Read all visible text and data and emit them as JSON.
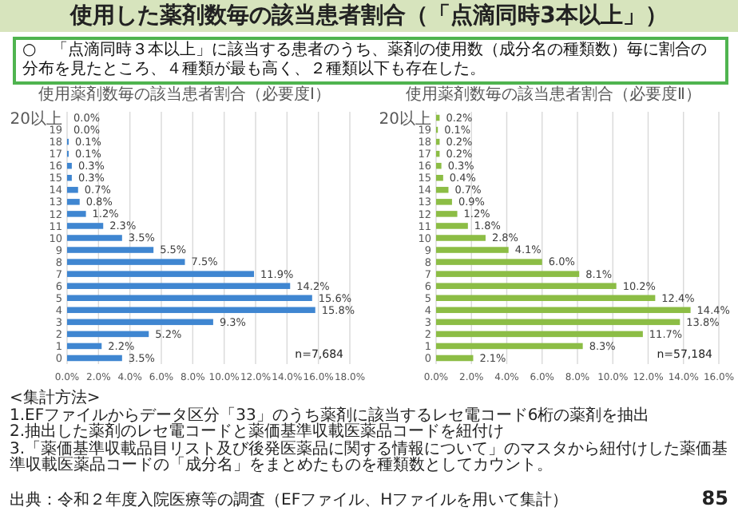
{
  "chart_data": [
    {
      "type": "other",
      "title": "使用した薬剤数毎の該当患者割合（「点滴同時3本以上」）",
      "subtitle": "○　「点滴同時３本以上」に該当する患者のうち、薬剤の使用数（成分名の種類数）毎に割合の分布を見たところ、４種類が最も高く、２種類以下も存在した。",
      "annotations": [
        "<集計方法>",
        "1.EFファイルからデータ区分「33」のうち薬剤に該当するレセ電コード6桁の薬剤を抽出",
        "2.抽出した薬剤のレセ電コードと薬価基準収載医薬品コードを紐付け",
        "3.「薬価基準収載品目リスト及び後発医薬品に関する情報について」のマスタから紐付けした薬価基準収載医薬品コードの「成分名」をまとめたものを種類数としてカウント。",
        "出典：令和２年度入院医療等の調査（EFファイル、Hファイルを用いて集計）",
        "85"
      ]
    },
    {
      "type": "bar",
      "orientation": "horizontal",
      "title": "使用薬剤数毎の該当患者割合（必要度Ⅰ）",
      "color": "#3f86d1",
      "grid": "x",
      "categories": [
        "20以上",
        "19",
        "18",
        "17",
        "16",
        "15",
        "14",
        "13",
        "12",
        "11",
        "10",
        "9",
        "8",
        "7",
        "6",
        "5",
        "4",
        "3",
        "2",
        "1",
        "0"
      ],
      "values": [
        0.0,
        0.0,
        0.1,
        0.1,
        0.3,
        0.3,
        0.7,
        0.8,
        1.2,
        2.3,
        3.5,
        5.5,
        7.5,
        11.9,
        14.2,
        15.6,
        15.8,
        9.3,
        5.2,
        2.2,
        3.5
      ],
      "value_labels": [
        "0.0%",
        "0.0%",
        "0.1%",
        "0.1%",
        "0.3%",
        "0.3%",
        "0.7%",
        "0.8%",
        "1.2%",
        "2.3%",
        "3.5%",
        "5.5%",
        "7.5%",
        "11.9%",
        "14.2%",
        "15.6%",
        "15.8%",
        "9.3%",
        "5.2%",
        "2.2%",
        "3.5%"
      ],
      "xlim": [
        0,
        18
      ],
      "xticks": [
        {
          "value": 0,
          "label": "0.0%"
        },
        {
          "value": 2,
          "label": "2.0%"
        },
        {
          "value": 4,
          "label": "4.0%"
        },
        {
          "value": 6,
          "label": "6.0%"
        },
        {
          "value": 8,
          "label": "8.0%"
        },
        {
          "value": 10,
          "label": "10.0%"
        },
        {
          "value": 12,
          "label": "12.0%"
        },
        {
          "value": 14,
          "label": "14.0%"
        },
        {
          "value": 16,
          "label": "16.0%"
        },
        {
          "value": 18,
          "label": "18.0%"
        }
      ],
      "annotations": [
        "n=7,684"
      ]
    },
    {
      "type": "bar",
      "orientation": "horizontal",
      "title": "使用薬剤数毎の該当患者割合（必要度Ⅱ）",
      "color": "#8cbd45",
      "grid": "x",
      "categories": [
        "20以上",
        "19",
        "18",
        "17",
        "16",
        "15",
        "14",
        "13",
        "12",
        "11",
        "10",
        "9",
        "8",
        "7",
        "6",
        "5",
        "4",
        "3",
        "2",
        "1",
        "0"
      ],
      "values": [
        0.2,
        0.1,
        0.2,
        0.2,
        0.3,
        0.4,
        0.7,
        0.9,
        1.2,
        1.8,
        2.8,
        4.1,
        6.0,
        8.1,
        10.2,
        12.4,
        14.4,
        13.8,
        11.7,
        8.3,
        2.1
      ],
      "value_labels": [
        "0.2%",
        "0.1%",
        "0.2%",
        "0.2%",
        "0.3%",
        "0.4%",
        "0.7%",
        "0.9%",
        "1.2%",
        "1.8%",
        "2.8%",
        "4.1%",
        "6.0%",
        "8.1%",
        "10.2%",
        "12.4%",
        "14.4%",
        "13.8%",
        "11.7%",
        "8.3%",
        "2.1%"
      ],
      "xlim": [
        0,
        16
      ],
      "xticks": [
        {
          "value": 0,
          "label": "0.0%"
        },
        {
          "value": 2,
          "label": "2.0%"
        },
        {
          "value": 4,
          "label": "4.0%"
        },
        {
          "value": 6,
          "label": "6.0%"
        },
        {
          "value": 8,
          "label": "8.0%"
        },
        {
          "value": 10,
          "label": "10.0%"
        },
        {
          "value": 12,
          "label": "12.0%"
        },
        {
          "value": 14,
          "label": "14.0%"
        },
        {
          "value": 16,
          "label": "16.0%"
        }
      ],
      "annotations": [
        "n=57,184"
      ]
    }
  ]
}
